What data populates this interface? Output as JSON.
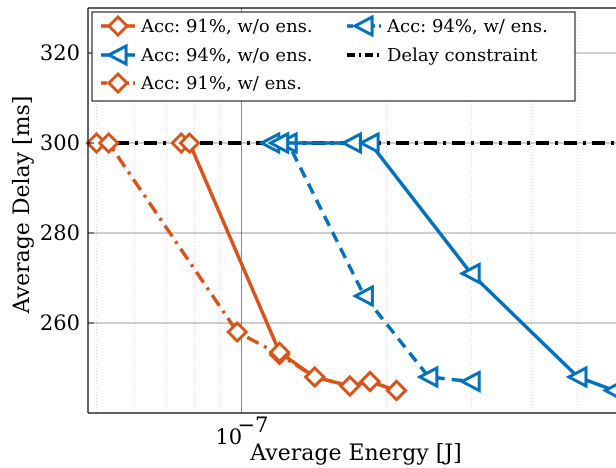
{
  "chart_data": {
    "type": "line",
    "xlabel": "Average Energy [J]",
    "ylabel": "Average Delay [ms]",
    "xscale": "log",
    "xlim": [
      4.8e-08,
      6e-07
    ],
    "ylim": [
      240,
      330
    ],
    "x_tick_labels": [
      {
        "value": 1e-07,
        "label": "10",
        "exponent": "−7"
      }
    ],
    "y_ticks": [
      260,
      280,
      300,
      320
    ],
    "grid": true,
    "legend_position": "top-left",
    "colors": {
      "acc91": "#D95319",
      "acc94": "#0072BD",
      "constraint": "#000000"
    },
    "series": [
      {
        "name": "Acc: 91%, w/o ens.",
        "color": "#D95319",
        "line_style": "solid",
        "marker": "diamond",
        "x": [
          7.5e-08,
          7.8e-08,
          1.2e-07,
          1.42e-07,
          1.68e-07,
          1.85e-07,
          2.1e-07
        ],
        "y": [
          300,
          300,
          253.5,
          248,
          246,
          247,
          245
        ]
      },
      {
        "name": "Acc: 91%, w/ ens.",
        "color": "#D95319",
        "line_style": "dashdot",
        "marker": "diamond",
        "x": [
          5e-08,
          5.3e-08,
          9.8e-08,
          1.2e-07,
          1.42e-07,
          1.68e-07,
          1.85e-07,
          2.1e-07
        ],
        "y": [
          300,
          300,
          258,
          253,
          248,
          246,
          247,
          245
        ]
      },
      {
        "name": "Acc: 94%, w/o ens.",
        "color": "#0072BD",
        "line_style": "solid",
        "marker": "triangle-left",
        "x": [
          1.15e-07,
          1.2e-07,
          1.7e-07,
          1.85e-07,
          3e-07,
          5e-07,
          5.95e-07
        ],
        "y": [
          300,
          300,
          300,
          300,
          271,
          248,
          245
        ]
      },
      {
        "name": "Acc: 94%, w/ ens.",
        "color": "#0072BD",
        "line_style": "dashed",
        "marker": "triangle-left",
        "x": [
          1.2e-07,
          1.25e-07,
          1.8e-07,
          2.45e-07,
          3e-07
        ],
        "y": [
          300,
          300,
          266,
          248,
          247
        ]
      },
      {
        "name": "Delay constraint",
        "color": "#000000",
        "line_style": "dashdot",
        "marker": "none",
        "x": [
          4.8e-08,
          6e-07
        ],
        "y": [
          300,
          300
        ]
      }
    ],
    "legend": [
      {
        "label": "Acc: 91%, w/o ens.",
        "series": 0
      },
      {
        "label": "Acc: 94%, w/ ens.",
        "series": 3
      },
      {
        "label": "Acc: 94%, w/o ens.",
        "series": 2
      },
      {
        "label": "Delay constraint",
        "series": 4
      },
      {
        "label": "Acc: 91%, w/ ens.",
        "series": 1
      }
    ]
  }
}
